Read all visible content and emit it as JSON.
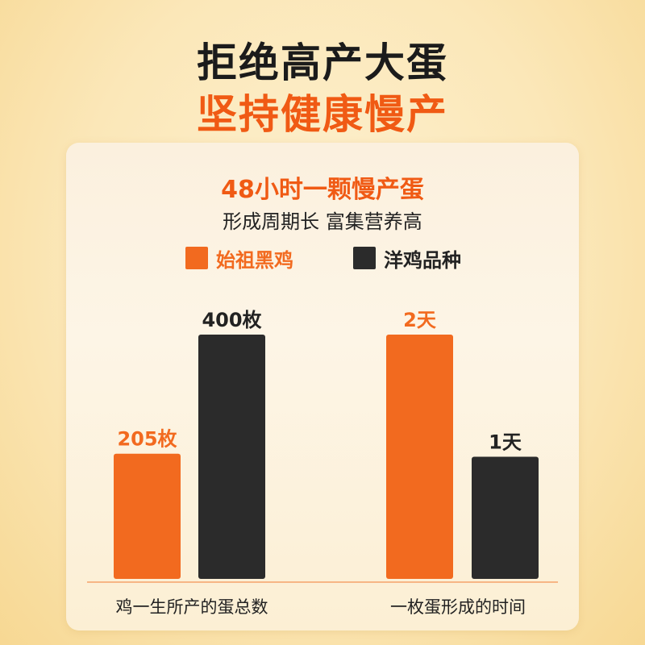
{
  "headline": {
    "line1": "拒绝高产大蛋",
    "line2": "坚持健康慢产"
  },
  "card": {
    "title": "48小时一颗慢产蛋",
    "subtitle": "形成周期长 富集营养高"
  },
  "colors": {
    "accent": "#f26a1f",
    "dark": "#2b2b2b",
    "baseline": "#f5a36a"
  },
  "chart_data": [
    {
      "type": "bar",
      "categories": [
        "鸡一生所产的蛋总数"
      ],
      "series": [
        {
          "name": "始祖黑鸡",
          "values": [
            205
          ],
          "labels": [
            "205枚"
          ],
          "color": "#f26a1f"
        },
        {
          "name": "洋鸡品种",
          "values": [
            400
          ],
          "labels": [
            "400枚"
          ],
          "color": "#2b2b2b"
        }
      ],
      "unit": "枚",
      "ylim": [
        0,
        400
      ]
    },
    {
      "type": "bar",
      "categories": [
        "一枚蛋形成的时间"
      ],
      "series": [
        {
          "name": "始祖黑鸡",
          "values": [
            2
          ],
          "labels": [
            "2天"
          ],
          "color": "#f26a1f"
        },
        {
          "name": "洋鸡品种",
          "values": [
            1
          ],
          "labels": [
            "1天"
          ],
          "color": "#2b2b2b"
        }
      ],
      "unit": "天",
      "ylim": [
        0,
        2
      ]
    }
  ],
  "legend": [
    {
      "label": "始祖黑鸡",
      "color": "#f26a1f"
    },
    {
      "label": "洋鸡品种",
      "color": "#2b2b2b"
    }
  ]
}
